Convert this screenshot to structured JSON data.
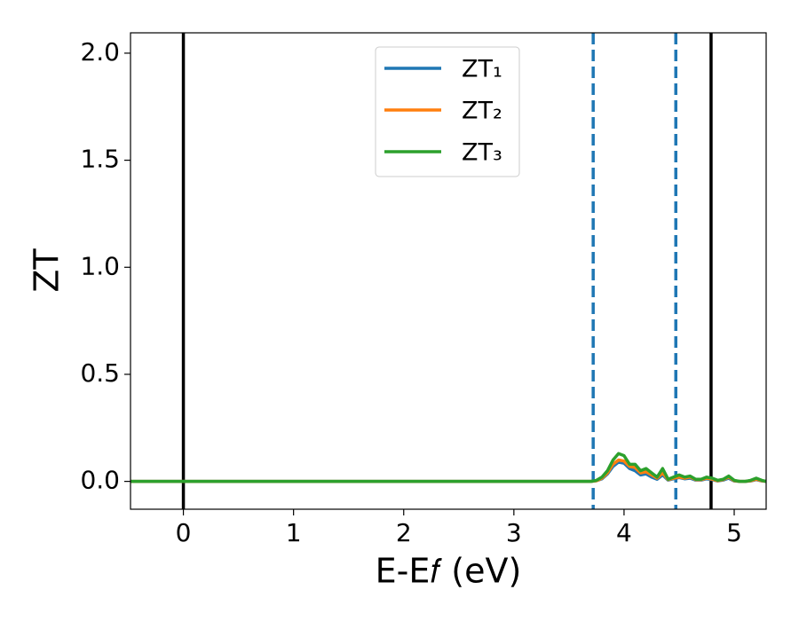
{
  "chart_data": {
    "type": "line",
    "xlabel": "E-E𝑓 (eV)",
    "ylabel": "ZT",
    "xlim": [
      -0.48,
      5.29
    ],
    "ylim": [
      -0.13,
      2.095
    ],
    "xticks": [
      0,
      1,
      2,
      3,
      4,
      5
    ],
    "yticks": [
      {
        "value": 0,
        "label": "0.0"
      },
      0.5,
      {
        "value": 1,
        "label": "1.0"
      },
      1.5,
      {
        "value": 2,
        "label": "2.0"
      }
    ],
    "legend": "upper center",
    "vlines": [
      {
        "x": 0,
        "color": "#000000",
        "style": "solid"
      },
      {
        "x": 4.79,
        "color": "#000000",
        "style": "solid"
      },
      {
        "x": 3.72,
        "color": "#1f77b4",
        "style": "dashed"
      },
      {
        "x": 4.47,
        "color": "#1f77b4",
        "style": "dashed"
      }
    ],
    "x": [
      -0.48,
      3.7,
      3.75,
      3.8,
      3.85,
      3.9,
      3.95,
      4.0,
      4.05,
      4.1,
      4.15,
      4.2,
      4.25,
      4.3,
      4.35,
      4.4,
      4.45,
      4.5,
      4.55,
      4.6,
      4.65,
      4.7,
      4.75,
      4.8,
      4.85,
      4.9,
      4.95,
      5.0,
      5.05,
      5.1,
      5.15,
      5.2,
      5.25,
      5.29
    ],
    "series": [
      {
        "name": "ZT₁",
        "color": "#1f77b4",
        "values": [
          0,
          0,
          0.003,
          0.012,
          0.035,
          0.07,
          0.09,
          0.085,
          0.06,
          0.05,
          0.03,
          0.035,
          0.02,
          0.01,
          0.03,
          0.006,
          0.012,
          0.018,
          0.012,
          0.015,
          0.006,
          0.006,
          0.012,
          0.008,
          0.002,
          0.006,
          0.015,
          0.002,
          0,
          0,
          0.002,
          0.008,
          0.002,
          0
        ]
      },
      {
        "name": "ZT₂",
        "color": "#ff7f0e",
        "values": [
          0,
          0,
          0.003,
          0.015,
          0.04,
          0.08,
          0.1,
          0.095,
          0.07,
          0.065,
          0.04,
          0.045,
          0.03,
          0.015,
          0.04,
          0.008,
          0.015,
          0.02,
          0.015,
          0.02,
          0.008,
          0.008,
          0.015,
          0.01,
          0.003,
          0.008,
          0.02,
          0.003,
          0,
          0,
          0.003,
          0.01,
          0.003,
          0
        ]
      },
      {
        "name": "ZT₃",
        "color": "#2ca02c",
        "values": [
          0,
          0,
          0.005,
          0.02,
          0.05,
          0.1,
          0.13,
          0.12,
          0.08,
          0.08,
          0.05,
          0.06,
          0.04,
          0.02,
          0.06,
          0.01,
          0.02,
          0.03,
          0.02,
          0.025,
          0.01,
          0.01,
          0.02,
          0.015,
          0.005,
          0.01,
          0.025,
          0.005,
          0,
          0,
          0.005,
          0.015,
          0.005,
          0
        ]
      }
    ]
  }
}
